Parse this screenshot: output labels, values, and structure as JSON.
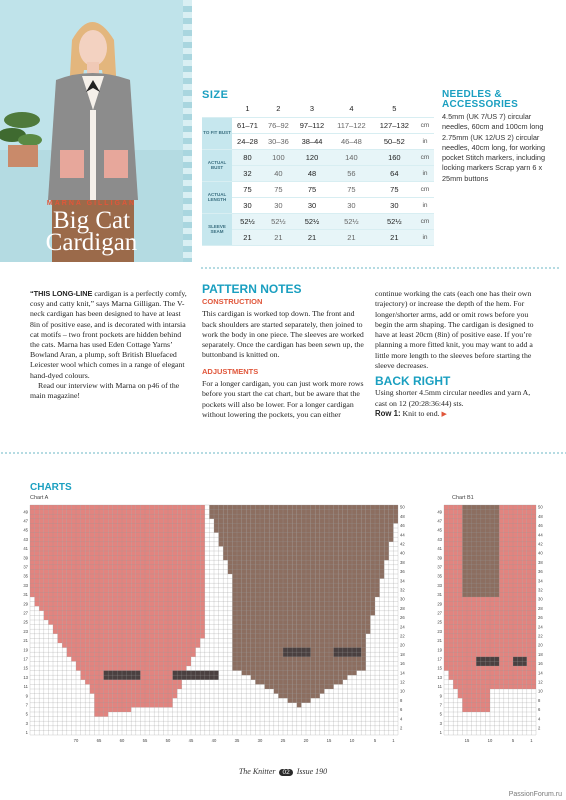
{
  "hero": {
    "designer": "MARNA GILLIGAN",
    "title_line1": "Big Cat",
    "title_line2": "Cardigan",
    "colors": {
      "background": "#bfe3ea",
      "accent": "#e0563a"
    }
  },
  "size": {
    "heading": "SIZE",
    "sizes": [
      "1",
      "2",
      "3",
      "4",
      "5"
    ],
    "rows": [
      {
        "label": "TO FIT BUST",
        "cm": [
          "61–71",
          "76–92",
          "97–112",
          "117–122",
          "127–132"
        ],
        "in": [
          "24–28",
          "30–36",
          "38–44",
          "46–48",
          "50–52"
        ]
      },
      {
        "label": "ACTUAL BUST",
        "cm": [
          "80",
          "100",
          "120",
          "140",
          "160"
        ],
        "in": [
          "32",
          "40",
          "48",
          "56",
          "64"
        ]
      },
      {
        "label": "ACTUAL LENGTH",
        "cm": [
          "75",
          "75",
          "75",
          "75",
          "75"
        ],
        "in": [
          "30",
          "30",
          "30",
          "30",
          "30"
        ]
      },
      {
        "label": "SLEEVE SEAM",
        "cm": [
          "52½",
          "52½",
          "52½",
          "52½",
          "52½"
        ],
        "in": [
          "21",
          "21",
          "21",
          "21",
          "21"
        ]
      }
    ],
    "unit_cm": "cm",
    "unit_in": "in"
  },
  "needles": {
    "heading_line1": "NEEDLES &",
    "heading_line2": "ACCESSORIES",
    "text": "4.5mm (UK 7/US 7) circular needles, 60cm and 100cm long 2.75mm (UK 12/US 2) circular needles, 40cm long, for working pocket Stitch markers, including locking markers Scrap yarn 6 x 25mm buttons"
  },
  "intro": {
    "lead": "“THIS LONG-LINE",
    "body": " cardigan is a perfectly comfy, cosy and catty knit,” says Marna Gilligan. The V-neck cardigan has been designed to have at least 8in of positive ease, and is decorated with intarsia cat motifs – two front pockets are hidden behind the cats. Marna has used Eden Cottage Yarns’ Bowland Aran, a plump, soft British Bluefaced Leicester wool which comes in a range of elegant hand-dyed colours.",
    "para2": "Read our interview with Marna on p46 of the main magazine!"
  },
  "notes": {
    "heading": "PATTERN NOTES",
    "construction_heading": "CONSTRUCTION",
    "construction": "This cardigan is worked top down. The front and back shoulders are started separately, then joined to work the body in one piece. The sleeves are worked separately. Once the cardigan has been sewn up, the buttonband is knitted on.",
    "adjustments_heading": "ADJUSTMENTS",
    "adjustments": "For a longer cardigan, you can just work more rows before you start the cat chart, but be aware that the pockets will also be lower. For a longer cardigan without lowering the pockets, you can either",
    "col2": "continue working the cats (each one has their own trajectory) or increase the depth of the hem. For longer/shorter arms, add or omit rows before you begin the arm shaping. The cardigan is designed to have at least 20cm (8in) of positive ease. If you’re planning a more fitted knit, you may want to add a little more length to the sleeves before starting the sleeve decreases.",
    "back_right_heading": "BACK RIGHT",
    "back_right": "Using shorter 4.5mm circular needles and yarn A, cast on 12 (20:28:36:44) sts.",
    "row1_label": "Row 1:",
    "row1": " Knit to end."
  },
  "charts": {
    "heading": "CHARTS",
    "chart_a_title": "Chart A",
    "chart_b_title": "Chart B1",
    "colors": {
      "pink": "#e2847f",
      "brown": "#8c6e60",
      "dark": "#4a4040",
      "background": "#ffffff",
      "grid": "#999999"
    }
  },
  "footer": {
    "magazine": "The Knitter",
    "page": "02",
    "issue": "Issue 190"
  },
  "watermark": "PassionForum.ru"
}
